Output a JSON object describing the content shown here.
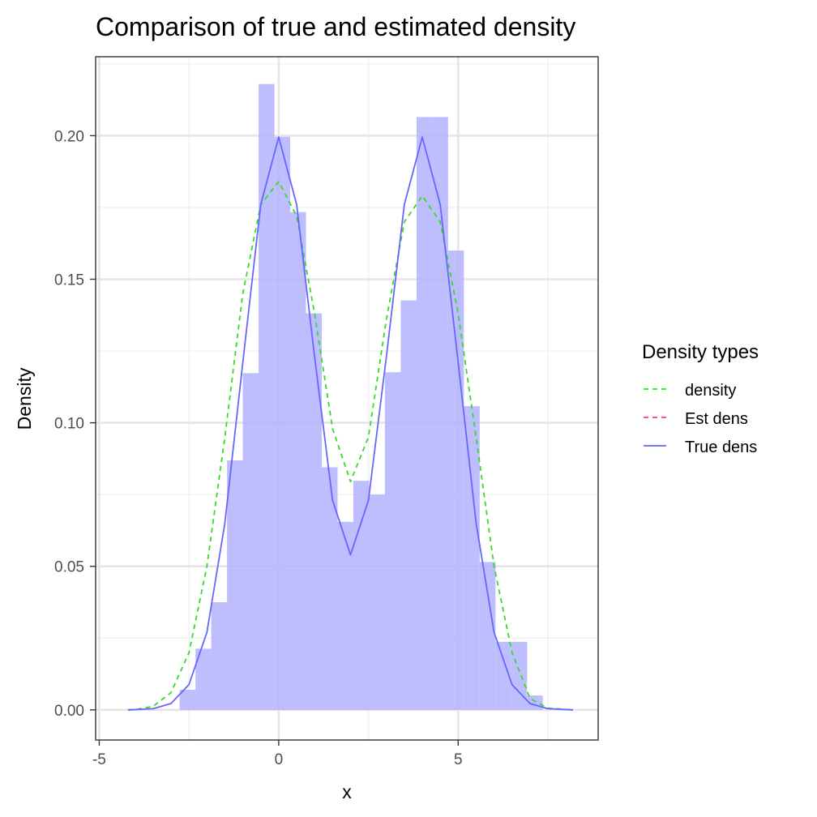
{
  "chart_data": {
    "type": "bar",
    "title": "Comparison of true and estimated density",
    "xlabel": "x",
    "ylabel": "Density",
    "xlim": [
      -5.1,
      8.9
    ],
    "ylim": [
      -0.0105,
      0.2275
    ],
    "x_ticks": [
      -5,
      0,
      5
    ],
    "x_tick_labels": [
      "-5",
      "0",
      "5"
    ],
    "y_ticks": [
      0.0,
      0.05,
      0.1,
      0.15,
      0.2
    ],
    "y_tick_labels": [
      "0.00",
      "0.05",
      "0.10",
      "0.15",
      "0.20"
    ],
    "grid": true,
    "legend": {
      "title": "Density types",
      "position": "right",
      "entries": [
        {
          "label": "density",
          "color": "#33dd22",
          "style": "dashed"
        },
        {
          "label": "Est dens",
          "color": "#ff3399",
          "style": "dashed"
        },
        {
          "label": "True dens",
          "color": "#6666ff",
          "style": "solid"
        }
      ]
    },
    "histogram": {
      "color": "#b3b3ff",
      "bin_width": 0.44,
      "bins": [
        {
          "x0": -2.76,
          "value": 0.007
        },
        {
          "x0": -2.32,
          "value": 0.0213
        },
        {
          "x0": -1.88,
          "value": 0.0375
        },
        {
          "x0": -1.44,
          "value": 0.0869
        },
        {
          "x0": -1.0,
          "value": 0.1173
        },
        {
          "x0": -0.56,
          "value": 0.218
        },
        {
          "x0": -0.12,
          "value": 0.1996
        },
        {
          "x0": 0.32,
          "value": 0.1734
        },
        {
          "x0": 0.76,
          "value": 0.1381
        },
        {
          "x0": 1.2,
          "value": 0.0845
        },
        {
          "x0": 1.64,
          "value": 0.0655
        },
        {
          "x0": 2.08,
          "value": 0.0798
        },
        {
          "x0": 2.52,
          "value": 0.075
        },
        {
          "x0": 2.96,
          "value": 0.1176
        },
        {
          "x0": 3.4,
          "value": 0.1426
        },
        {
          "x0": 3.84,
          "value": 0.2065
        },
        {
          "x0": 4.28,
          "value": 0.2065
        },
        {
          "x0": 4.72,
          "value": 0.16
        },
        {
          "x0": 5.16,
          "value": 0.1058
        },
        {
          "x0": 5.6,
          "value": 0.0515
        },
        {
          "x0": 6.04,
          "value": 0.0237
        },
        {
          "x0": 6.48,
          "value": 0.0237
        },
        {
          "x0": 6.92,
          "value": 0.005
        }
      ]
    },
    "series": [
      {
        "name": "density",
        "color": "#33dd22",
        "style": "dashed",
        "x": [
          -4.2,
          -4.0,
          -3.5,
          -3.0,
          -2.5,
          -2.0,
          -1.5,
          -1.0,
          -0.5,
          0.0,
          0.5,
          1.0,
          1.5,
          2.0,
          2.5,
          3.0,
          3.5,
          4.0,
          4.5,
          5.0,
          5.5,
          6.0,
          6.5,
          7.0,
          7.5,
          8.2
        ],
        "values": [
          0.0,
          0.0001,
          0.0012,
          0.006,
          0.0199,
          0.05,
          0.095,
          0.145,
          0.176,
          0.184,
          0.172,
          0.138,
          0.098,
          0.0795,
          0.095,
          0.136,
          0.17,
          0.179,
          0.17,
          0.138,
          0.095,
          0.05,
          0.02,
          0.004,
          0.0006,
          0.0
        ]
      },
      {
        "name": "True dens",
        "color": "#6666ff",
        "style": "solid",
        "x": [
          -4.2,
          -4.0,
          -3.5,
          -3.0,
          -2.5,
          -2.0,
          -1.5,
          -1.0,
          -0.5,
          0.0,
          0.5,
          1.0,
          1.5,
          2.0,
          2.5,
          3.0,
          3.5,
          4.0,
          4.5,
          5.0,
          5.5,
          6.0,
          6.5,
          7.0,
          7.5,
          8.2
        ],
        "values": [
          0.0,
          0.0001,
          0.0004,
          0.0022,
          0.0088,
          0.027,
          0.065,
          0.121,
          0.176,
          0.1995,
          0.176,
          0.123,
          0.073,
          0.054,
          0.073,
          0.123,
          0.176,
          0.1995,
          0.176,
          0.121,
          0.065,
          0.027,
          0.0088,
          0.0022,
          0.0004,
          0.0
        ]
      }
    ]
  }
}
